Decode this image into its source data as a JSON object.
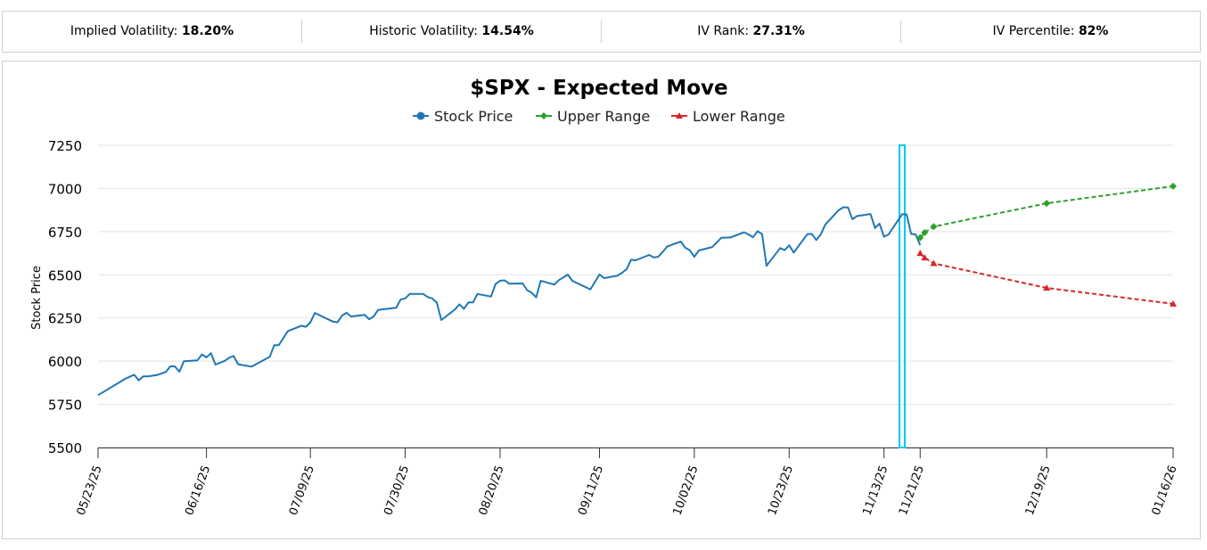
{
  "stats": [
    {
      "label": "Implied Volatility:",
      "value": "18.20%"
    },
    {
      "label": "Historic Volatility:",
      "value": "14.54%"
    },
    {
      "label": "IV Rank:",
      "value": "27.31%"
    },
    {
      "label": "IV Percentile:",
      "value": "82%"
    }
  ],
  "colors": {
    "stock": "#1f77b4",
    "upper": "#2ca02c",
    "lower": "#d62728",
    "highlight": "#00c8f0"
  },
  "chart_data": {
    "type": "line",
    "title": "$SPX - Expected Move",
    "ylabel": "Stock Price",
    "xlabel": "",
    "ylim": [
      5500,
      7250
    ],
    "yticks": [
      5500,
      5750,
      6000,
      6250,
      6500,
      6750,
      7000,
      7250
    ],
    "xrange_days": [
      0,
      238
    ],
    "xticks": [
      {
        "label": "05/23/25",
        "day": 0
      },
      {
        "label": "06/16/25",
        "day": 24
      },
      {
        "label": "07/09/25",
        "day": 47
      },
      {
        "label": "07/30/25",
        "day": 68
      },
      {
        "label": "08/20/25",
        "day": 89
      },
      {
        "label": "09/11/25",
        "day": 111
      },
      {
        "label": "10/02/25",
        "day": 132
      },
      {
        "label": "10/23/25",
        "day": 153
      },
      {
        "label": "11/13/25",
        "day": 174
      },
      {
        "label": "11/21/25",
        "day": 182
      },
      {
        "label": "12/19/25",
        "day": 210
      },
      {
        "label": "01/16/26",
        "day": 238
      }
    ],
    "highlight_day": 178,
    "legend": [
      "Stock Price",
      "Upper Range",
      "Lower Range"
    ],
    "series": [
      {
        "name": "Stock Price",
        "points": [
          [
            0,
            5803
          ],
          [
            4,
            5866
          ],
          [
            6,
            5898
          ],
          [
            8,
            5921
          ],
          [
            9,
            5889
          ],
          [
            10,
            5912
          ],
          [
            11,
            5912
          ],
          [
            13,
            5919
          ],
          [
            15,
            5937
          ],
          [
            16,
            5970
          ],
          [
            17,
            5970
          ],
          [
            18,
            5939
          ],
          [
            19,
            5999
          ],
          [
            22,
            6005
          ],
          [
            23,
            6039
          ],
          [
            24,
            6022
          ],
          [
            25,
            6046
          ],
          [
            26,
            5980
          ],
          [
            28,
            6001
          ],
          [
            29,
            6019
          ],
          [
            30,
            6030
          ],
          [
            31,
            5982
          ],
          [
            34,
            5968
          ],
          [
            38,
            6025
          ],
          [
            39,
            6092
          ],
          [
            40,
            6092
          ],
          [
            42,
            6173
          ],
          [
            45,
            6205
          ],
          [
            46,
            6199
          ],
          [
            47,
            6225
          ],
          [
            48,
            6279
          ],
          [
            52,
            6229
          ],
          [
            53,
            6225
          ],
          [
            54,
            6263
          ],
          [
            55,
            6280
          ],
          [
            56,
            6259
          ],
          [
            59,
            6268
          ],
          [
            60,
            6243
          ],
          [
            61,
            6259
          ],
          [
            62,
            6297
          ],
          [
            66,
            6309
          ],
          [
            67,
            6358
          ],
          [
            68,
            6363
          ],
          [
            69,
            6389
          ],
          [
            72,
            6389
          ],
          [
            73,
            6371
          ],
          [
            74,
            6363
          ],
          [
            75,
            6339
          ],
          [
            76,
            6238
          ],
          [
            79,
            6299
          ],
          [
            80,
            6329
          ],
          [
            81,
            6303
          ],
          [
            82,
            6340
          ],
          [
            83,
            6340
          ],
          [
            84,
            6389
          ],
          [
            87,
            6374
          ],
          [
            88,
            6446
          ],
          [
            89,
            6466
          ],
          [
            90,
            6468
          ],
          [
            91,
            6449
          ],
          [
            94,
            6450
          ],
          [
            95,
            6411
          ],
          [
            96,
            6396
          ],
          [
            97,
            6370
          ],
          [
            98,
            6466
          ],
          [
            101,
            6443
          ],
          [
            102,
            6469
          ],
          [
            104,
            6501
          ],
          [
            105,
            6465
          ],
          [
            109,
            6416
          ],
          [
            111,
            6502
          ],
          [
            112,
            6481
          ],
          [
            115,
            6495
          ],
          [
            116,
            6512
          ],
          [
            117,
            6532
          ],
          [
            118,
            6587
          ],
          [
            119,
            6584
          ],
          [
            122,
            6615
          ],
          [
            123,
            6601
          ],
          [
            124,
            6604
          ],
          [
            125,
            6632
          ],
          [
            126,
            6664
          ],
          [
            129,
            6693
          ],
          [
            130,
            6657
          ],
          [
            131,
            6642
          ],
          [
            132,
            6604
          ],
          [
            133,
            6641
          ],
          [
            136,
            6661
          ],
          [
            137,
            6688
          ],
          [
            138,
            6715
          ],
          [
            139,
            6715
          ],
          [
            140,
            6716
          ],
          [
            143,
            6746
          ],
          [
            144,
            6734
          ],
          [
            145,
            6717
          ],
          [
            146,
            6753
          ],
          [
            147,
            6736
          ],
          [
            148,
            6552
          ],
          [
            151,
            6655
          ],
          [
            152,
            6643
          ],
          [
            153,
            6671
          ],
          [
            154,
            6629
          ],
          [
            157,
            6735
          ],
          [
            158,
            6737
          ],
          [
            159,
            6701
          ],
          [
            160,
            6735
          ],
          [
            161,
            6791
          ],
          [
            164,
            6875
          ],
          [
            165,
            6891
          ],
          [
            166,
            6890
          ],
          [
            167,
            6822
          ],
          [
            168,
            6840
          ],
          [
            171,
            6852
          ],
          [
            172,
            6771
          ],
          [
            173,
            6796
          ],
          [
            174,
            6721
          ],
          [
            175,
            6734
          ],
          [
            178,
            6851
          ],
          [
            179,
            6850
          ],
          [
            180,
            6737
          ],
          [
            181,
            6734
          ],
          [
            182,
            6672
          ]
        ]
      },
      {
        "name": "Upper Range",
        "points": [
          [
            182,
            6715
          ],
          [
            183,
            6745
          ],
          [
            185,
            6779
          ],
          [
            210,
            6914
          ],
          [
            238,
            7013
          ]
        ]
      },
      {
        "name": "Lower Range",
        "points": [
          [
            182,
            6625
          ],
          [
            183,
            6599
          ],
          [
            185,
            6566
          ],
          [
            210,
            6424
          ],
          [
            238,
            6332
          ]
        ]
      }
    ]
  }
}
